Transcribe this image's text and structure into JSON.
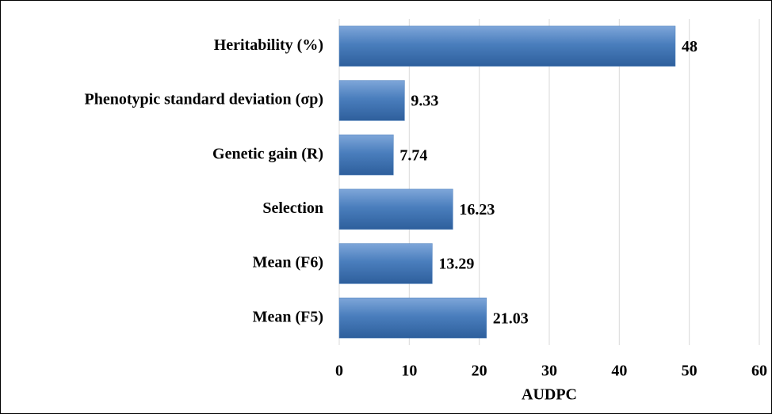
{
  "chart_data": {
    "type": "barh",
    "categories": [
      "Heritability (%)",
      "Phenotypic standard deviation (σp)",
      "Genetic gain (R)",
      "Selection",
      "Mean (F6)",
      "Mean (F5)"
    ],
    "values": [
      48,
      9.33,
      7.74,
      16.23,
      13.29,
      21.03
    ],
    "color": "#4f81bd",
    "xlabel": "AUDPC",
    "xlim": [
      0,
      60
    ],
    "xticks": [
      0,
      10,
      20,
      30,
      40,
      50,
      60
    ],
    "grid": true
  }
}
